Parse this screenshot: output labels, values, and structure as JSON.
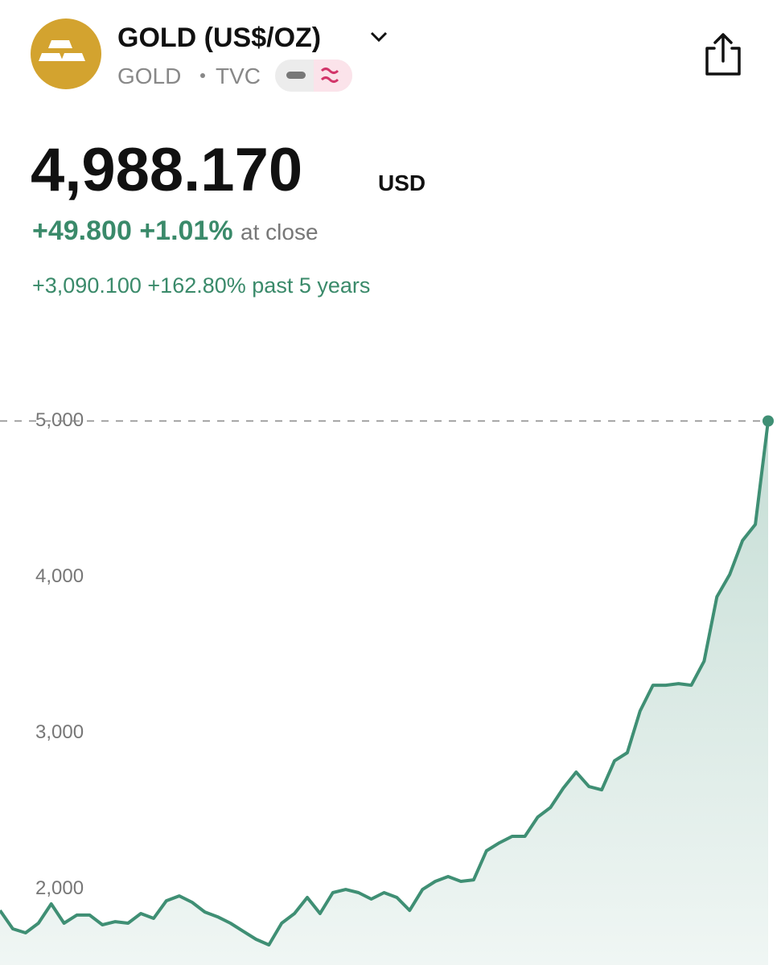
{
  "header": {
    "title": "GOLD (US$/OZ)",
    "symbol": "GOLD",
    "exchange": "TVC"
  },
  "quote": {
    "price": "4,988.170",
    "currency": "USD",
    "change": "+49.800",
    "change_percent": "+1.01%",
    "status": "at close",
    "period_change": "+3,090.100",
    "period_change_percent": "+162.80%",
    "period": "past 5 years"
  },
  "chart_data": {
    "type": "line",
    "values": [
      1850,
      1732,
      1706,
      1768,
      1892,
      1768,
      1820,
      1820,
      1758,
      1778,
      1768,
      1830,
      1799,
      1912,
      1943,
      1902,
      1840,
      1809,
      1768,
      1716,
      1665,
      1629,
      1768,
      1830,
      1933,
      1830,
      1964,
      1984,
      1964,
      1923,
      1964,
      1933,
      1850,
      1984,
      2036,
      2067,
      2036,
      2046,
      2232,
      2283,
      2325,
      2325,
      2448,
      2510,
      2634,
      2737,
      2644,
      2623,
      2809,
      2861,
      3129,
      3294,
      3294,
      3304,
      3294,
      3448,
      3861,
      4005,
      4222,
      4325,
      4988
    ],
    "color": "#3f8f74",
    "ylim": [
      1500,
      5300
    ],
    "yticks": [
      {
        "value": 2000,
        "label": "2,000"
      },
      {
        "value": 3000,
        "label": "3,000"
      },
      {
        "value": 4000,
        "label": "4,000"
      },
      {
        "value": 5000,
        "label": "5,000"
      }
    ]
  }
}
